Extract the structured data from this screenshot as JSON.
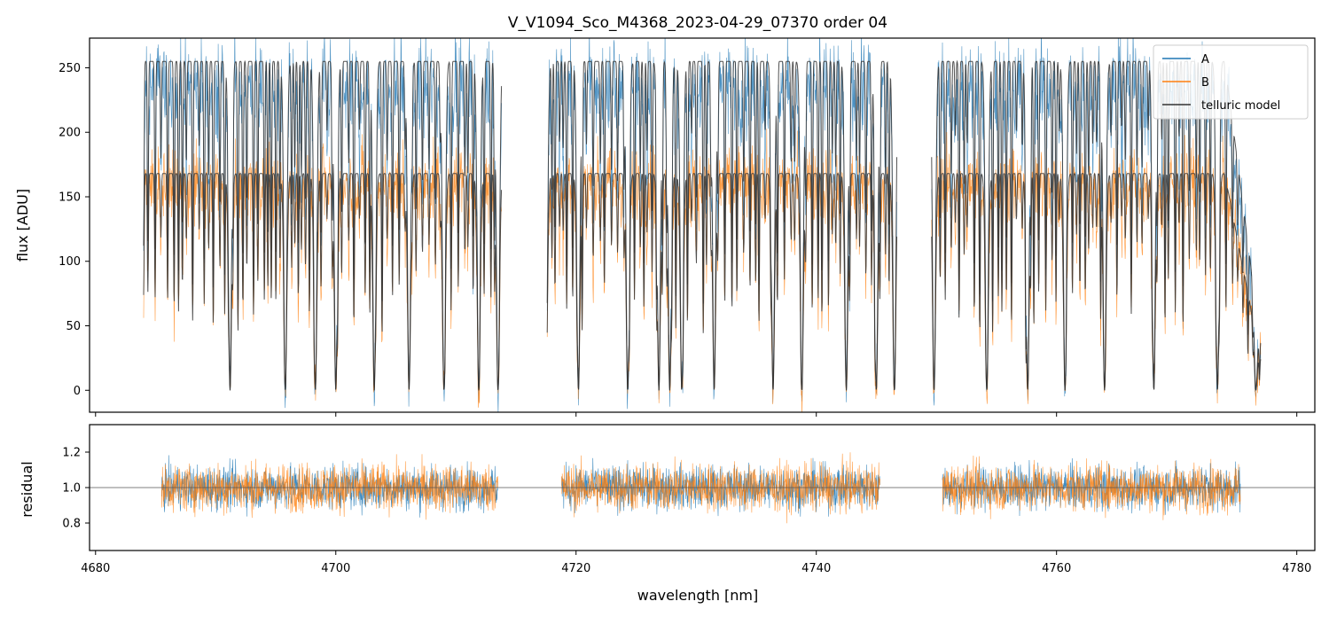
{
  "chart_data": [
    {
      "type": "line",
      "panel": "flux",
      "title": "V_V1094_Sco_M4368_2023-04-29_07370  order 04",
      "xlabel": "",
      "ylabel": "flux [ADU]",
      "xlim": [
        4679.5,
        4781.5
      ],
      "ylim": [
        -17,
        273
      ],
      "yticks": [
        0,
        50,
        100,
        150,
        200,
        250
      ],
      "xticks": [
        4680,
        4700,
        4720,
        4740,
        4760,
        4780
      ],
      "show_xtick_labels": false,
      "grid": false,
      "legend": {
        "placement": "top-right",
        "entries": [
          "A",
          "B",
          "telluric model"
        ]
      },
      "segments": [
        [
          4684.0,
          4713.8
        ],
        [
          4717.6,
          4746.7
        ],
        [
          4749.6,
          4777.0
        ]
      ],
      "series": [
        {
          "name": "A",
          "color": "#1f77b4",
          "approx_continuum": 235,
          "approx_noise": 28
        },
        {
          "name": "B",
          "color": "#ff7f0e",
          "approx_continuum": 160,
          "approx_noise": 22
        },
        {
          "name": "telluric model",
          "color": "#333333",
          "continuum_levels": [
            255,
            168
          ],
          "note": "model traces for A and B"
        }
      ],
      "deep_absorption_lines": [
        4691.2,
        4695.8,
        4698.3,
        4700.0,
        4703.2,
        4706.1,
        4709.0,
        4711.9,
        4713.5,
        4717.5,
        4720.2,
        4724.3,
        4726.9,
        4727.8,
        4728.8,
        4731.5,
        4736.4,
        4738.8,
        4742.5,
        4745.0,
        4746.5,
        4749.8,
        4754.2,
        4757.6,
        4760.7,
        4764.0,
        4768.1,
        4773.4,
        4776.6
      ]
    },
    {
      "type": "line",
      "panel": "residual",
      "xlabel": "wavelength [nm]",
      "ylabel": "residual",
      "xlim": [
        4679.5,
        4781.5
      ],
      "ylim": [
        0.645,
        1.355
      ],
      "yticks": [
        0.8,
        1.0,
        1.2
      ],
      "ytick_labels": [
        "0.8",
        "1.0",
        "1.2"
      ],
      "xticks": [
        4680,
        4700,
        4720,
        4740,
        4760,
        4780
      ],
      "xtick_labels": [
        "4680",
        "4700",
        "4720",
        "4740",
        "4760",
        "4780"
      ],
      "reference_line": 1.0,
      "segments": [
        [
          4685.5,
          4713.5
        ],
        [
          4718.8,
          4745.3
        ],
        [
          4750.5,
          4775.3
        ]
      ],
      "series": [
        {
          "name": "A",
          "color": "#1f77b4",
          "center": 1.0,
          "spread": 0.11
        },
        {
          "name": "B",
          "color": "#ff7f0e",
          "center": 1.0,
          "spread": 0.12
        }
      ]
    }
  ]
}
